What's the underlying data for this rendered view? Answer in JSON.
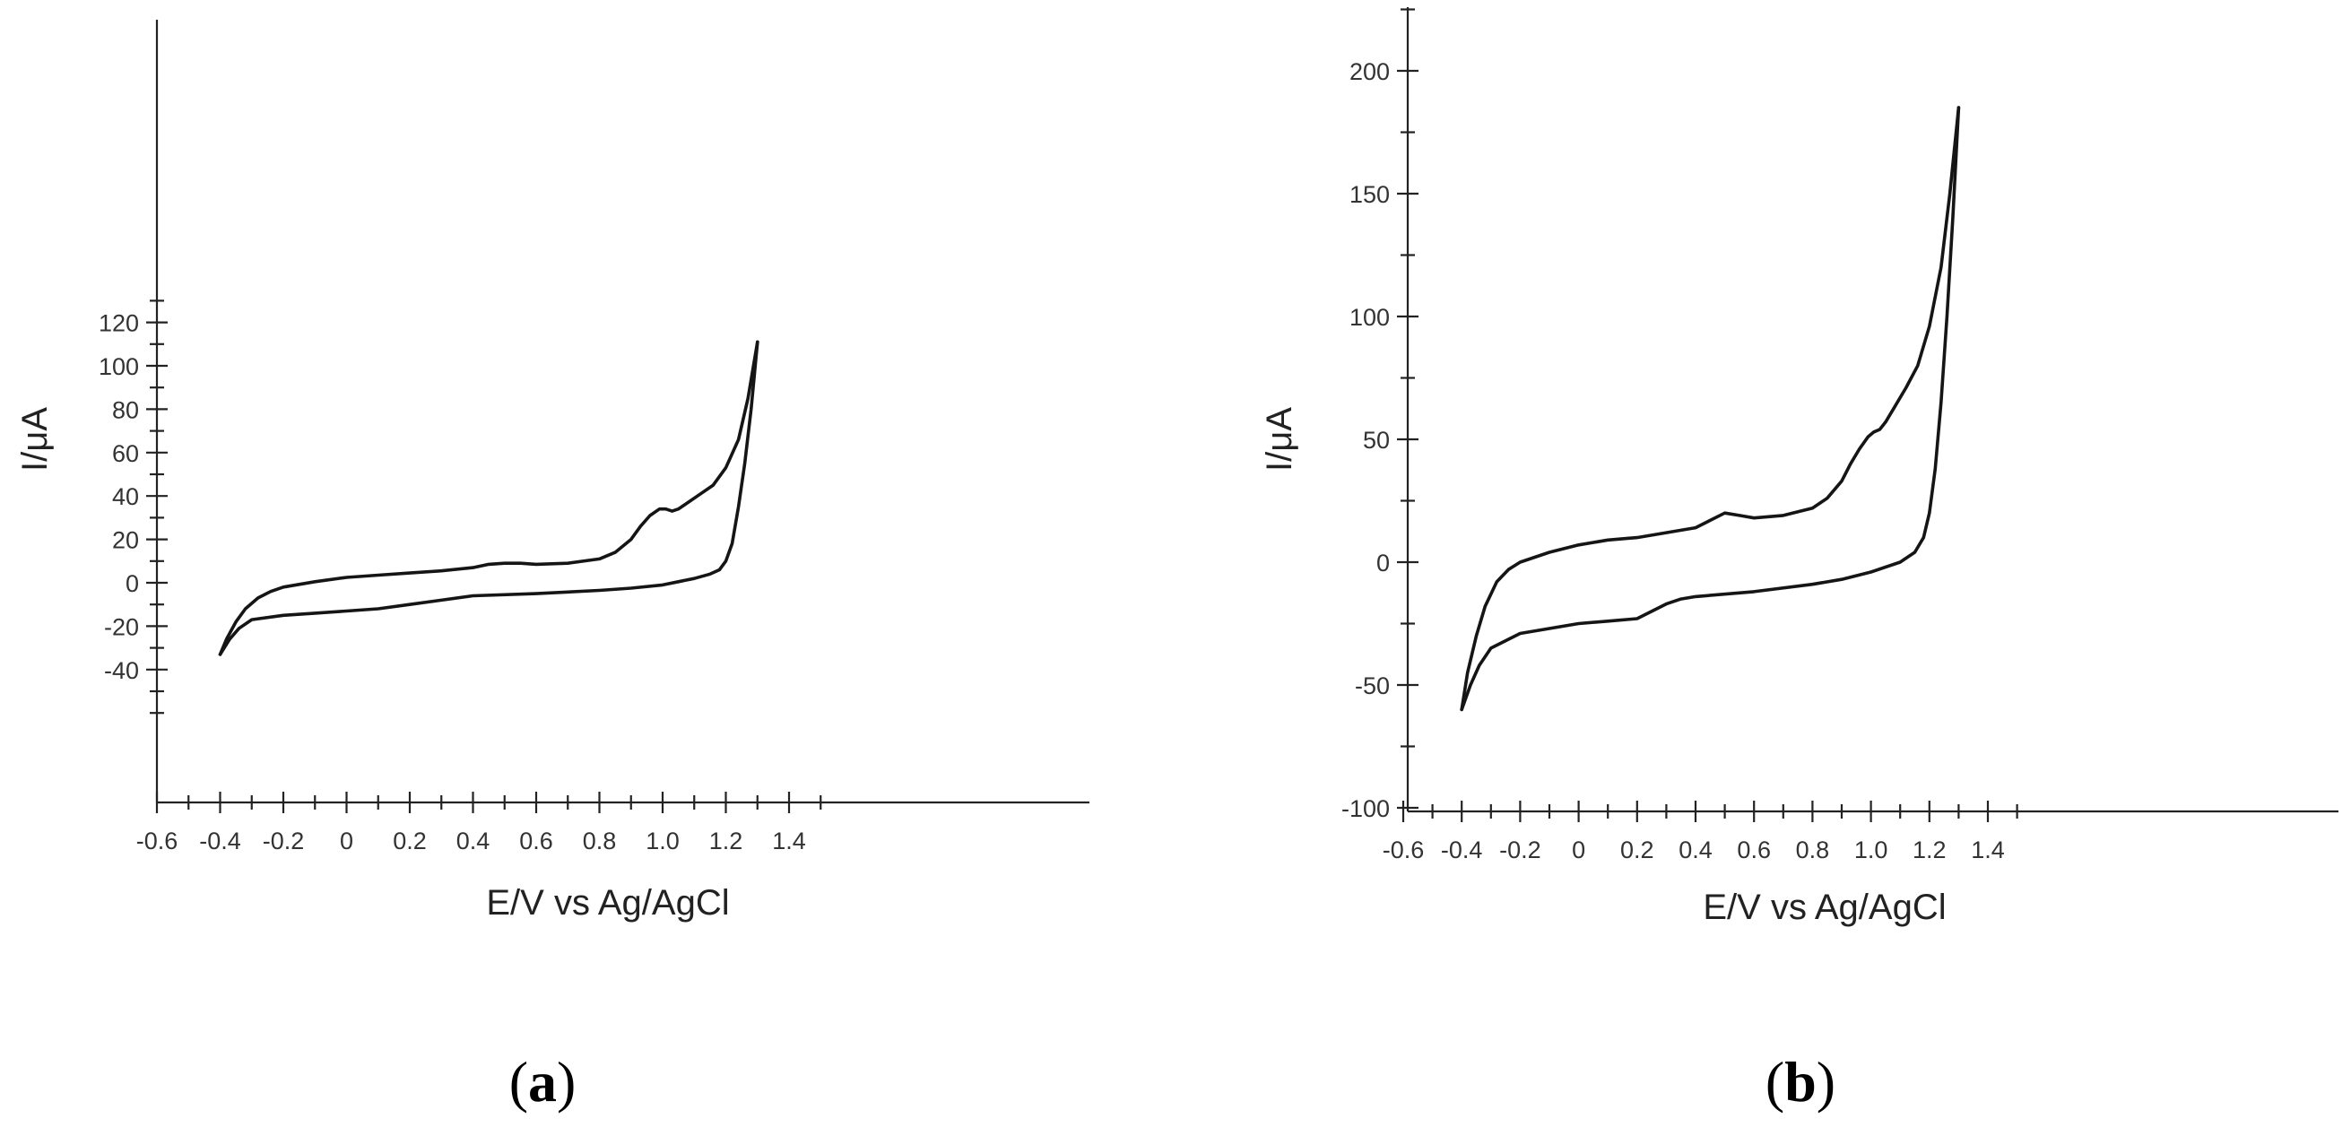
{
  "chart_data": [
    {
      "type": "line",
      "panel_label": "a",
      "xlabel": "E/V vs Ag/AgCl",
      "ylabel": "I/μA",
      "xlim": [
        -0.6,
        1.5
      ],
      "ylim": [
        -50,
        130
      ],
      "xticks": [
        -0.6,
        -0.4,
        -0.2,
        0,
        0.2,
        0.4,
        0.6,
        0.8,
        1.0,
        1.2,
        1.4
      ],
      "xtick_labels": [
        "-0.6",
        "-0.4",
        "-0.2",
        "0",
        "0.2",
        "0.4",
        "0.6",
        "0.8",
        "1.0",
        "1.2",
        "1.4"
      ],
      "yticks": [
        -40,
        -20,
        0,
        20,
        40,
        60,
        80,
        100,
        120
      ],
      "ytick_labels": [
        "-40",
        "-20",
        "0",
        "20",
        "40",
        "60",
        "80",
        "100",
        "120"
      ],
      "grid": false,
      "series": [
        {
          "x": [
            -0.4,
            -0.38,
            -0.35,
            -0.32,
            -0.28,
            -0.24,
            -0.2,
            -0.1,
            0,
            0.1,
            0.2,
            0.3,
            0.4,
            0.45,
            0.5,
            0.55,
            0.6,
            0.7,
            0.8,
            0.85,
            0.9,
            0.93,
            0.96,
            0.99,
            1.01,
            1.03,
            1.05,
            1.08,
            1.12,
            1.16,
            1.2,
            1.24,
            1.27,
            1.3
          ],
          "y": [
            -33,
            -26,
            -18,
            -12,
            -7,
            -4,
            -2,
            0.5,
            2.5,
            3.5,
            4.5,
            5.5,
            7,
            8.5,
            9,
            9,
            8.5,
            9,
            11,
            14,
            20,
            26,
            31,
            34,
            34,
            33,
            34,
            37,
            41,
            45,
            53,
            66,
            85,
            111
          ]
        },
        {
          "x": [
            1.3,
            1.28,
            1.26,
            1.24,
            1.22,
            1.2,
            1.18,
            1.15,
            1.1,
            1.05,
            1.0,
            0.9,
            0.8,
            0.6,
            0.4,
            0.3,
            0.2,
            0.1,
            0,
            -0.1,
            -0.2,
            -0.3,
            -0.34,
            -0.37,
            -0.4
          ],
          "y": [
            111,
            80,
            55,
            35,
            18,
            10,
            6,
            4,
            2,
            0.5,
            -1,
            -2.5,
            -3.5,
            -5,
            -6,
            -8,
            -10,
            -12,
            -13,
            -14,
            -15,
            -17,
            -21,
            -26,
            -33
          ]
        }
      ]
    },
    {
      "type": "line",
      "panel_label": "b",
      "xlabel": "E/V vs Ag/AgCl",
      "ylabel": "I/μA",
      "xlim": [
        -0.6,
        1.5
      ],
      "ylim": [
        -100,
        225
      ],
      "xticks": [
        -0.6,
        -0.4,
        -0.2,
        0,
        0.2,
        0.4,
        0.6,
        0.8,
        1.0,
        1.2,
        1.4
      ],
      "xtick_labels": [
        "-0.6",
        "-0.4",
        "-0.2",
        "0",
        "0.2",
        "0.4",
        "0.6",
        "0.8",
        "1.0",
        "1.2",
        "1.4"
      ],
      "yticks": [
        -100,
        -50,
        0,
        50,
        100,
        150,
        200
      ],
      "ytick_labels": [
        "-100",
        "-50",
        "0",
        "50",
        "100",
        "150",
        "200"
      ],
      "grid": false,
      "series": [
        {
          "x": [
            -0.4,
            -0.38,
            -0.35,
            -0.32,
            -0.28,
            -0.24,
            -0.2,
            -0.1,
            0,
            0.1,
            0.2,
            0.3,
            0.4,
            0.45,
            0.5,
            0.55,
            0.6,
            0.7,
            0.8,
            0.85,
            0.9,
            0.93,
            0.96,
            0.99,
            1.01,
            1.03,
            1.05,
            1.08,
            1.12,
            1.16,
            1.2,
            1.24,
            1.27,
            1.3
          ],
          "y": [
            -60,
            -45,
            -30,
            -18,
            -8,
            -3,
            0,
            4,
            7,
            9,
            10,
            12,
            14,
            17,
            20,
            19,
            18,
            19,
            22,
            26,
            33,
            40,
            46,
            51,
            53,
            54,
            57,
            63,
            71,
            80,
            96,
            120,
            150,
            185
          ]
        },
        {
          "x": [
            1.3,
            1.28,
            1.26,
            1.24,
            1.22,
            1.2,
            1.18,
            1.15,
            1.1,
            1.0,
            0.9,
            0.8,
            0.6,
            0.4,
            0.35,
            0.3,
            0.2,
            0.1,
            0,
            -0.1,
            -0.2,
            -0.3,
            -0.34,
            -0.37,
            -0.4
          ],
          "y": [
            185,
            140,
            100,
            65,
            38,
            20,
            10,
            4,
            0,
            -4,
            -7,
            -9,
            -12,
            -14,
            -15,
            -17,
            -23,
            -24,
            -25,
            -27,
            -29,
            -35,
            -42,
            -50,
            -60
          ]
        }
      ]
    }
  ]
}
